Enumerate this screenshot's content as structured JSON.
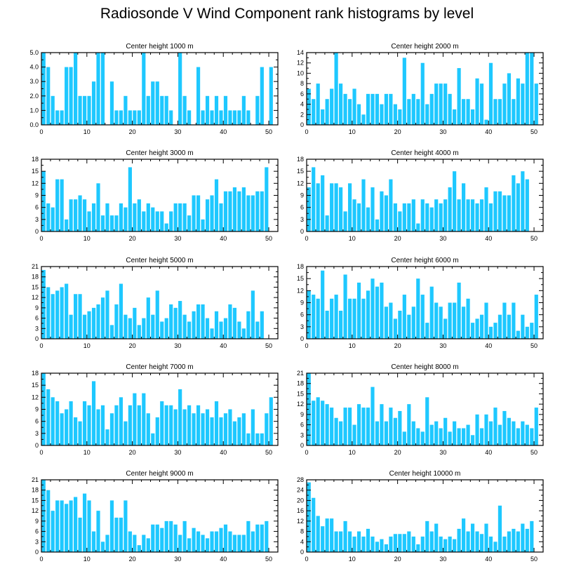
{
  "figure": {
    "title": "Radiosonde V Wind Component rank histograms by level"
  },
  "colors": {
    "bar": "#1ec8ff",
    "axis": "#000000",
    "background": "#ffffff"
  },
  "chart_data": [
    {
      "type": "bar",
      "title": "Center height 1000 m",
      "xlabel": "",
      "ylabel": "",
      "xlim": [
        0,
        52
      ],
      "ylim": [
        0,
        5
      ],
      "yticks": [
        0.0,
        1.0,
        2.0,
        3.0,
        4.0,
        5.0
      ],
      "ytick_labels": [
        "0.0",
        "1.0",
        "2.0",
        "3.0",
        "4.0",
        "5.0"
      ],
      "xticks": [
        0,
        10,
        20,
        30,
        40,
        50
      ],
      "xtick_labels": [
        "0",
        "10",
        "20",
        "30",
        "40",
        "50"
      ],
      "x": [
        0,
        1,
        2,
        3,
        4,
        5,
        6,
        7,
        8,
        9,
        10,
        11,
        12,
        13,
        14,
        15,
        16,
        17,
        18,
        19,
        20,
        21,
        22,
        23,
        24,
        25,
        26,
        27,
        28,
        29,
        30,
        31,
        32,
        33,
        34,
        35,
        36,
        37,
        38,
        39,
        40,
        41,
        42,
        43,
        44,
        45,
        46,
        47,
        48,
        49,
        50,
        51
      ],
      "values": [
        5,
        4,
        2,
        1,
        1,
        4,
        4,
        5,
        2,
        2,
        2,
        3,
        5,
        5,
        0,
        3,
        1,
        1,
        2,
        1,
        1,
        1,
        5,
        2,
        3,
        3,
        2,
        2,
        1,
        0,
        5,
        2,
        1,
        0,
        4,
        1,
        2,
        1,
        2,
        1,
        2,
        1,
        1,
        1,
        2,
        1,
        0,
        2,
        4,
        0,
        4,
        0
      ]
    },
    {
      "type": "bar",
      "title": "Center height 2000 m",
      "xlabel": "",
      "ylabel": "",
      "xlim": [
        0,
        52
      ],
      "ylim": [
        0,
        14
      ],
      "yticks": [
        0,
        2,
        4,
        6,
        8,
        10,
        12,
        14
      ],
      "ytick_labels": [
        "0",
        "2",
        "4",
        "6",
        "8",
        "10",
        "12",
        "14"
      ],
      "xticks": [
        0,
        10,
        20,
        30,
        40,
        50
      ],
      "xtick_labels": [
        "0",
        "10",
        "20",
        "30",
        "40",
        "50"
      ],
      "x": [
        0,
        1,
        2,
        3,
        4,
        5,
        6,
        7,
        8,
        9,
        10,
        11,
        12,
        13,
        14,
        15,
        16,
        17,
        18,
        19,
        20,
        21,
        22,
        23,
        24,
        25,
        26,
        27,
        28,
        29,
        30,
        31,
        32,
        33,
        34,
        35,
        36,
        37,
        38,
        39,
        40,
        41,
        42,
        43,
        44,
        45,
        46,
        47,
        48,
        49,
        50,
        51
      ],
      "values": [
        7,
        5,
        8,
        3,
        5,
        7,
        14,
        8,
        6,
        5,
        7,
        4,
        2,
        6,
        6,
        6,
        4,
        6,
        6,
        4,
        3,
        13,
        5,
        6,
        5,
        12,
        4,
        6,
        8,
        8,
        8,
        6,
        3,
        11,
        5,
        5,
        3,
        9,
        8,
        1,
        12,
        5,
        5,
        8,
        10,
        5,
        9,
        8,
        14,
        14,
        8,
        0
      ]
    },
    {
      "type": "bar",
      "title": "Center height 3000 m",
      "xlabel": "",
      "ylabel": "",
      "xlim": [
        0,
        52
      ],
      "ylim": [
        0,
        18
      ],
      "yticks": [
        0,
        3,
        6,
        9,
        12,
        15,
        18
      ],
      "ytick_labels": [
        "0",
        "3",
        "6",
        "9",
        "12",
        "15",
        "18"
      ],
      "xticks": [
        0,
        10,
        20,
        30,
        40,
        50
      ],
      "xtick_labels": [
        "0",
        "10",
        "20",
        "30",
        "40",
        "50"
      ],
      "x": [
        0,
        1,
        2,
        3,
        4,
        5,
        6,
        7,
        8,
        9,
        10,
        11,
        12,
        13,
        14,
        15,
        16,
        17,
        18,
        19,
        20,
        21,
        22,
        23,
        24,
        25,
        26,
        27,
        28,
        29,
        30,
        31,
        32,
        33,
        34,
        35,
        36,
        37,
        38,
        39,
        40,
        41,
        42,
        43,
        44,
        45,
        46,
        47,
        48,
        49,
        50,
        51
      ],
      "values": [
        15,
        7,
        6,
        13,
        13,
        3,
        8,
        8,
        9,
        8,
        5,
        7,
        12,
        4,
        7,
        4,
        4,
        7,
        6,
        16,
        7,
        8,
        5,
        7,
        6,
        5,
        5,
        2,
        5,
        7,
        7,
        7,
        4,
        9,
        9,
        3,
        8,
        9,
        13,
        7,
        10,
        10,
        11,
        10,
        11,
        9,
        9,
        10,
        10,
        16,
        0,
        0
      ]
    },
    {
      "type": "bar",
      "title": "Center height 4000 m",
      "xlabel": "",
      "ylabel": "",
      "xlim": [
        0,
        52
      ],
      "ylim": [
        0,
        18
      ],
      "yticks": [
        0,
        3,
        6,
        9,
        12,
        15,
        18
      ],
      "ytick_labels": [
        "0",
        "3",
        "6",
        "9",
        "12",
        "15",
        "18"
      ],
      "xticks": [
        0,
        10,
        20,
        30,
        40,
        50
      ],
      "xtick_labels": [
        "0",
        "10",
        "20",
        "30",
        "40",
        "50"
      ],
      "x": [
        0,
        1,
        2,
        3,
        4,
        5,
        6,
        7,
        8,
        9,
        10,
        11,
        12,
        13,
        14,
        15,
        16,
        17,
        18,
        19,
        20,
        21,
        22,
        23,
        24,
        25,
        26,
        27,
        28,
        29,
        30,
        31,
        32,
        33,
        34,
        35,
        36,
        37,
        38,
        39,
        40,
        41,
        42,
        43,
        44,
        45,
        46,
        47,
        48,
        49,
        50,
        51
      ],
      "values": [
        11,
        16,
        12,
        14,
        4,
        12,
        12,
        11,
        5,
        12,
        8,
        7,
        13,
        6,
        11,
        3,
        10,
        9,
        13,
        7,
        5,
        7,
        7,
        8,
        2,
        8,
        7,
        6,
        8,
        7,
        8,
        11,
        15,
        8,
        12,
        8,
        8,
        7,
        8,
        11,
        7,
        10,
        10,
        9,
        9,
        14,
        12,
        15,
        13,
        0,
        0,
        0
      ]
    },
    {
      "type": "bar",
      "title": "Center height 5000 m",
      "xlabel": "",
      "ylabel": "",
      "xlim": [
        0,
        52
      ],
      "ylim": [
        0,
        21
      ],
      "yticks": [
        0,
        3,
        6,
        9,
        12,
        15,
        18,
        21
      ],
      "ytick_labels": [
        "0",
        "3",
        "6",
        "9",
        "12",
        "15",
        "18",
        "21"
      ],
      "xticks": [
        0,
        10,
        20,
        30,
        40,
        50
      ],
      "xtick_labels": [
        "0",
        "10",
        "20",
        "30",
        "40",
        "50"
      ],
      "x": [
        0,
        1,
        2,
        3,
        4,
        5,
        6,
        7,
        8,
        9,
        10,
        11,
        12,
        13,
        14,
        15,
        16,
        17,
        18,
        19,
        20,
        21,
        22,
        23,
        24,
        25,
        26,
        27,
        28,
        29,
        30,
        31,
        32,
        33,
        34,
        35,
        36,
        37,
        38,
        39,
        40,
        41,
        42,
        43,
        44,
        45,
        46,
        47,
        48,
        49,
        50,
        51
      ],
      "values": [
        20,
        15,
        13,
        14,
        15,
        16,
        7,
        13,
        13,
        7,
        8,
        9,
        10,
        12,
        14,
        4,
        10,
        16,
        7,
        6,
        9,
        4,
        6,
        12,
        7,
        14,
        5,
        6,
        10,
        9,
        11,
        7,
        5,
        8,
        10,
        10,
        6,
        3,
        8,
        5,
        6,
        10,
        9,
        5,
        3,
        8,
        14,
        5,
        8,
        0,
        0,
        0
      ]
    },
    {
      "type": "bar",
      "title": "Center height 6000 m",
      "xlabel": "",
      "ylabel": "",
      "xlim": [
        0,
        52
      ],
      "ylim": [
        0,
        18
      ],
      "yticks": [
        0,
        3,
        6,
        9,
        12,
        15,
        18
      ],
      "ytick_labels": [
        "0",
        "3",
        "6",
        "9",
        "12",
        "15",
        "18"
      ],
      "xticks": [
        0,
        10,
        20,
        30,
        40,
        50
      ],
      "xtick_labels": [
        "0",
        "10",
        "20",
        "30",
        "40",
        "50"
      ],
      "x": [
        0,
        1,
        2,
        3,
        4,
        5,
        6,
        7,
        8,
        9,
        10,
        11,
        12,
        13,
        14,
        15,
        16,
        17,
        18,
        19,
        20,
        21,
        22,
        23,
        24,
        25,
        26,
        27,
        28,
        29,
        30,
        31,
        32,
        33,
        34,
        35,
        36,
        37,
        38,
        39,
        40,
        41,
        42,
        43,
        44,
        45,
        46,
        47,
        48,
        49,
        50,
        51
      ],
      "values": [
        12,
        11,
        10,
        17,
        7,
        10,
        11,
        7,
        16,
        10,
        10,
        14,
        10,
        12,
        15,
        13,
        14,
        8,
        9,
        5,
        7,
        11,
        6,
        8,
        15,
        11,
        4,
        13,
        9,
        8,
        5,
        9,
        9,
        14,
        8,
        10,
        4,
        5,
        6,
        9,
        3,
        4,
        6,
        9,
        6,
        9,
        2,
        6,
        3,
        4,
        11,
        0
      ]
    },
    {
      "type": "bar",
      "title": "Center height 7000 m",
      "xlabel": "",
      "ylabel": "",
      "xlim": [
        0,
        52
      ],
      "ylim": [
        0,
        18
      ],
      "yticks": [
        0,
        3,
        6,
        9,
        12,
        15,
        18
      ],
      "ytick_labels": [
        "0",
        "3",
        "6",
        "9",
        "12",
        "15",
        "18"
      ],
      "xticks": [
        0,
        10,
        20,
        30,
        40,
        50
      ],
      "xtick_labels": [
        "0",
        "10",
        "20",
        "30",
        "40",
        "50"
      ],
      "x": [
        0,
        1,
        2,
        3,
        4,
        5,
        6,
        7,
        8,
        9,
        10,
        11,
        12,
        13,
        14,
        15,
        16,
        17,
        18,
        19,
        20,
        21,
        22,
        23,
        24,
        25,
        26,
        27,
        28,
        29,
        30,
        31,
        32,
        33,
        34,
        35,
        36,
        37,
        38,
        39,
        40,
        41,
        42,
        43,
        44,
        45,
        46,
        47,
        48,
        49,
        50,
        51
      ],
      "values": [
        18,
        14,
        12,
        11,
        8,
        9,
        11,
        7,
        6,
        11,
        10,
        16,
        9,
        10,
        4,
        8,
        10,
        12,
        6,
        10,
        13,
        10,
        13,
        8,
        3,
        7,
        11,
        10,
        10,
        9,
        14,
        9,
        10,
        8,
        10,
        8,
        9,
        7,
        11,
        7,
        8,
        9,
        6,
        7,
        8,
        3,
        9,
        3,
        3,
        8,
        12,
        0
      ]
    },
    {
      "type": "bar",
      "title": "Center height 8000 m",
      "xlabel": "",
      "ylabel": "",
      "xlim": [
        0,
        52
      ],
      "ylim": [
        0,
        21
      ],
      "yticks": [
        0,
        3,
        6,
        9,
        12,
        15,
        18,
        21
      ],
      "ytick_labels": [
        "0",
        "3",
        "6",
        "9",
        "12",
        "15",
        "18",
        "21"
      ],
      "xticks": [
        0,
        10,
        20,
        30,
        40,
        50
      ],
      "xtick_labels": [
        "0",
        "10",
        "20",
        "30",
        "40",
        "50"
      ],
      "x": [
        0,
        1,
        2,
        3,
        4,
        5,
        6,
        7,
        8,
        9,
        10,
        11,
        12,
        13,
        14,
        15,
        16,
        17,
        18,
        19,
        20,
        21,
        22,
        23,
        24,
        25,
        26,
        27,
        28,
        29,
        30,
        31,
        32,
        33,
        34,
        35,
        36,
        37,
        38,
        39,
        40,
        41,
        42,
        43,
        44,
        45,
        46,
        47,
        48,
        49,
        50,
        51
      ],
      "values": [
        21,
        13,
        14,
        13,
        12,
        11,
        8,
        7,
        11,
        11,
        6,
        12,
        11,
        11,
        17,
        7,
        12,
        7,
        11,
        8,
        10,
        4,
        12,
        7,
        5,
        4,
        14,
        6,
        7,
        5,
        8,
        4,
        7,
        5,
        5,
        6,
        3,
        9,
        5,
        9,
        7,
        11,
        6,
        10,
        8,
        7,
        5,
        7,
        6,
        5,
        11,
        0
      ]
    },
    {
      "type": "bar",
      "title": "Center height 9000 m",
      "xlabel": "",
      "ylabel": "",
      "xlim": [
        0,
        52
      ],
      "ylim": [
        0,
        21
      ],
      "yticks": [
        0,
        3,
        6,
        9,
        12,
        15,
        18,
        21
      ],
      "ytick_labels": [
        "0",
        "3",
        "6",
        "9",
        "12",
        "15",
        "18",
        "21"
      ],
      "xticks": [
        0,
        10,
        20,
        30,
        40,
        50
      ],
      "xtick_labels": [
        "0",
        "10",
        "20",
        "30",
        "40",
        "50"
      ],
      "x": [
        0,
        1,
        2,
        3,
        4,
        5,
        6,
        7,
        8,
        9,
        10,
        11,
        12,
        13,
        14,
        15,
        16,
        17,
        18,
        19,
        20,
        21,
        22,
        23,
        24,
        25,
        26,
        27,
        28,
        29,
        30,
        31,
        32,
        33,
        34,
        35,
        36,
        37,
        38,
        39,
        40,
        41,
        42,
        43,
        44,
        45,
        46,
        47,
        48,
        49,
        50,
        51
      ],
      "values": [
        21,
        18,
        12,
        15,
        15,
        14,
        15,
        16,
        10,
        17,
        15,
        6,
        12,
        3,
        5,
        15,
        10,
        10,
        15,
        6,
        5,
        2,
        5,
        4,
        8,
        8,
        7,
        9,
        9,
        8,
        5,
        9,
        4,
        7,
        6,
        5,
        4,
        6,
        6,
        7,
        8,
        6,
        5,
        5,
        5,
        9,
        6,
        8,
        8,
        9,
        0,
        0
      ]
    },
    {
      "type": "bar",
      "title": "Center height 10000 m",
      "xlabel": "",
      "ylabel": "",
      "xlim": [
        0,
        52
      ],
      "ylim": [
        0,
        28
      ],
      "yticks": [
        0,
        4,
        8,
        12,
        16,
        20,
        24,
        28
      ],
      "ytick_labels": [
        "0",
        "4",
        "8",
        "12",
        "16",
        "20",
        "24",
        "28"
      ],
      "xticks": [
        0,
        10,
        20,
        30,
        40,
        50
      ],
      "xtick_labels": [
        "0",
        "10",
        "20",
        "30",
        "40",
        "50"
      ],
      "x": [
        0,
        1,
        2,
        3,
        4,
        5,
        6,
        7,
        8,
        9,
        10,
        11,
        12,
        13,
        14,
        15,
        16,
        17,
        18,
        19,
        20,
        21,
        22,
        23,
        24,
        25,
        26,
        27,
        28,
        29,
        30,
        31,
        32,
        33,
        34,
        35,
        36,
        37,
        38,
        39,
        40,
        41,
        42,
        43,
        44,
        45,
        46,
        47,
        48,
        49,
        50,
        51
      ],
      "values": [
        27,
        21,
        14,
        10,
        13,
        13,
        8,
        8,
        12,
        8,
        6,
        8,
        6,
        9,
        6,
        4,
        5,
        3,
        6,
        7,
        7,
        7,
        8,
        6,
        3,
        6,
        12,
        8,
        11,
        6,
        5,
        6,
        5,
        9,
        13,
        8,
        11,
        8,
        7,
        11,
        6,
        4,
        18,
        6,
        8,
        9,
        8,
        11,
        9,
        12,
        0,
        0
      ]
    }
  ]
}
